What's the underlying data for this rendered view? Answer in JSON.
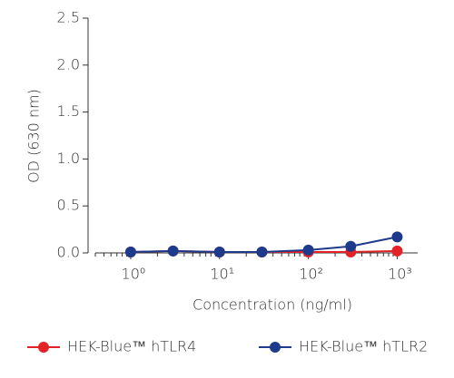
{
  "chart_data": {
    "type": "line",
    "x_label": "Concentration (ng/ml)",
    "y_label": "OD (630 nm)",
    "x_scale": "log",
    "x": [
      1,
      3,
      10,
      30,
      100,
      300,
      1000
    ],
    "series": [
      {
        "name": "HEK-Blue™ hTLR4",
        "color": "#e32227",
        "values": [
          0.01,
          0.02,
          0.01,
          0.01,
          0.01,
          0.01,
          0.02
        ]
      },
      {
        "name": "HEK-Blue™ hTLR2",
        "color": "#1e3a8c",
        "values": [
          0.01,
          0.02,
          0.01,
          0.01,
          0.03,
          0.07,
          0.17
        ]
      }
    ],
    "xlim": [
      0.4,
      1700
    ],
    "xticks": [
      {
        "value": 1,
        "label": "10⁰"
      },
      {
        "value": 10,
        "label": "10¹"
      },
      {
        "value": 100,
        "label": "10²"
      },
      {
        "value": 1000,
        "label": "10³"
      }
    ],
    "xminorticks": [
      0.4,
      0.5,
      0.6,
      0.7,
      0.8,
      0.9,
      2,
      3,
      4,
      5,
      6,
      7,
      8,
      9,
      20,
      30,
      40,
      50,
      60,
      70,
      80,
      90,
      200,
      300,
      400,
      500,
      600,
      700,
      800,
      900
    ],
    "ylim": [
      0,
      2.5
    ],
    "yticks": [
      {
        "value": 0,
        "label": "0.0"
      },
      0.5,
      {
        "value": 1,
        "label": "1.0"
      },
      1.5,
      {
        "value": 2,
        "label": "2.0"
      },
      2.5
    ],
    "legend": "bottom"
  }
}
